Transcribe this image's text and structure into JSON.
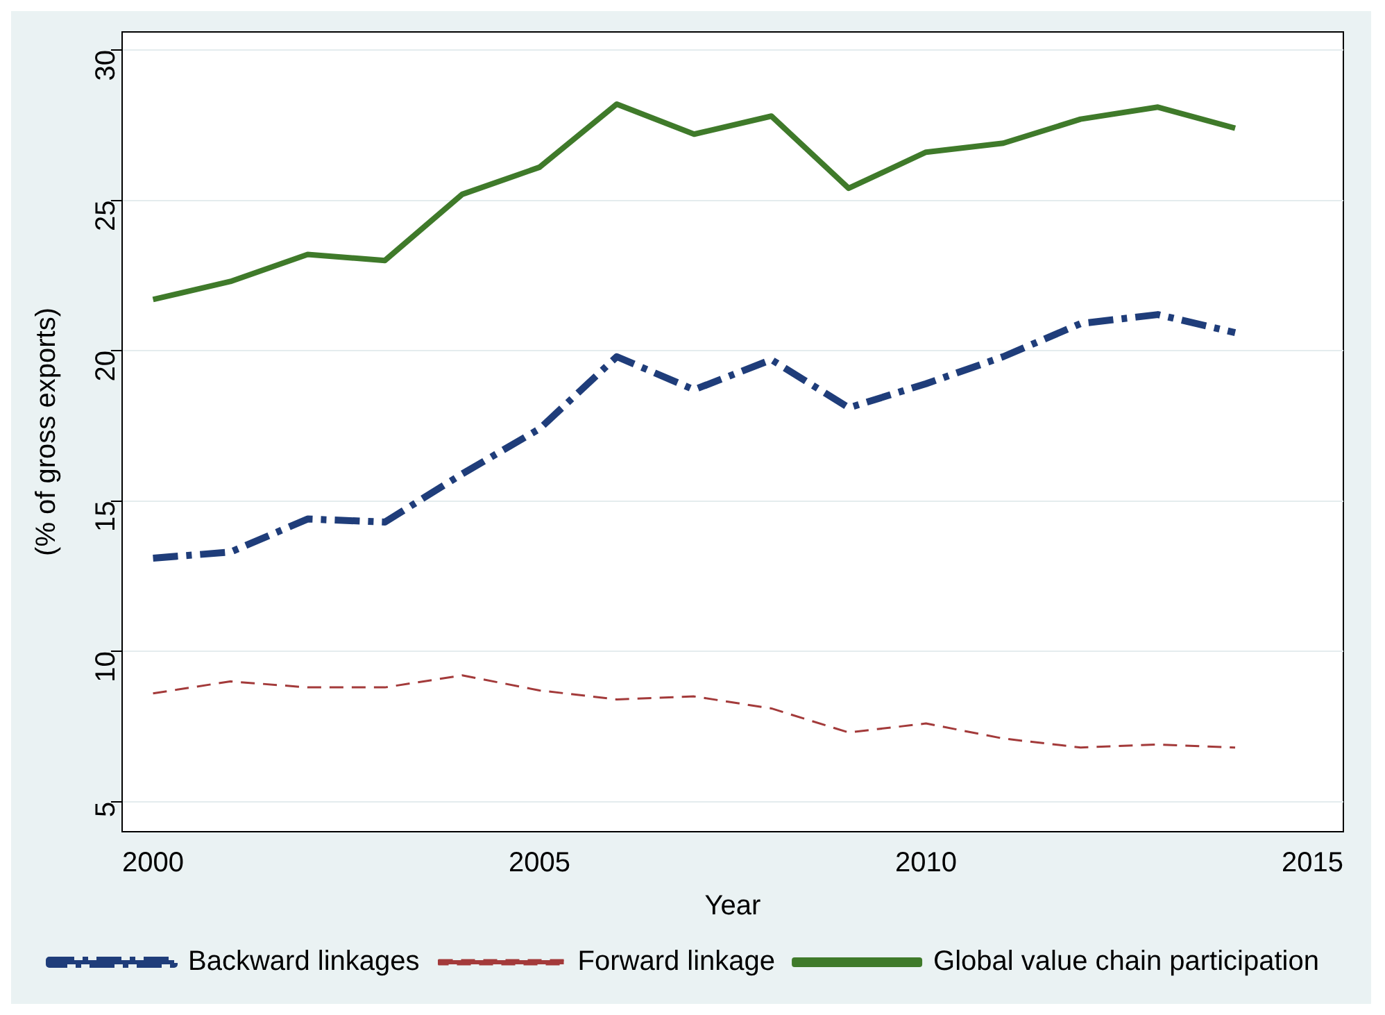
{
  "chart_data": {
    "type": "line",
    "xlabel": "Year",
    "ylabel": "(% of gross exports)",
    "x": [
      2000,
      2001,
      2002,
      2003,
      2004,
      2005,
      2006,
      2007,
      2008,
      2009,
      2010,
      2011,
      2012,
      2013,
      2014
    ],
    "series": [
      {
        "name": "Backward linkages",
        "color": "#1f3d7a",
        "line_style": "dashdot",
        "values": [
          13.1,
          13.3,
          14.4,
          14.3,
          15.9,
          17.4,
          19.8,
          18.7,
          19.7,
          18.1,
          18.9,
          19.8,
          20.9,
          21.2,
          20.6
        ]
      },
      {
        "name": "Forward linkage",
        "color": "#a33a3a",
        "line_style": "dashed",
        "values": [
          8.6,
          9.0,
          8.8,
          8.8,
          9.2,
          8.7,
          8.4,
          8.5,
          8.1,
          7.3,
          7.6,
          7.1,
          6.8,
          6.9,
          6.8
        ]
      },
      {
        "name": "Global value chain participation",
        "color": "#3f7a2a",
        "line_style": "solid",
        "values": [
          21.7,
          22.3,
          23.2,
          23.0,
          25.2,
          26.1,
          28.2,
          27.2,
          27.8,
          25.4,
          26.6,
          26.9,
          27.7,
          28.1,
          27.4
        ]
      }
    ],
    "xlim": [
      1999.6,
      2015.4
    ],
    "xticks": [
      2000,
      2005,
      2010,
      2015
    ],
    "ylim": [
      4,
      30.6
    ],
    "yticks": [
      5,
      10,
      15,
      20,
      25,
      30
    ],
    "grid": "y",
    "legend": "bottom",
    "marker": "none"
  }
}
